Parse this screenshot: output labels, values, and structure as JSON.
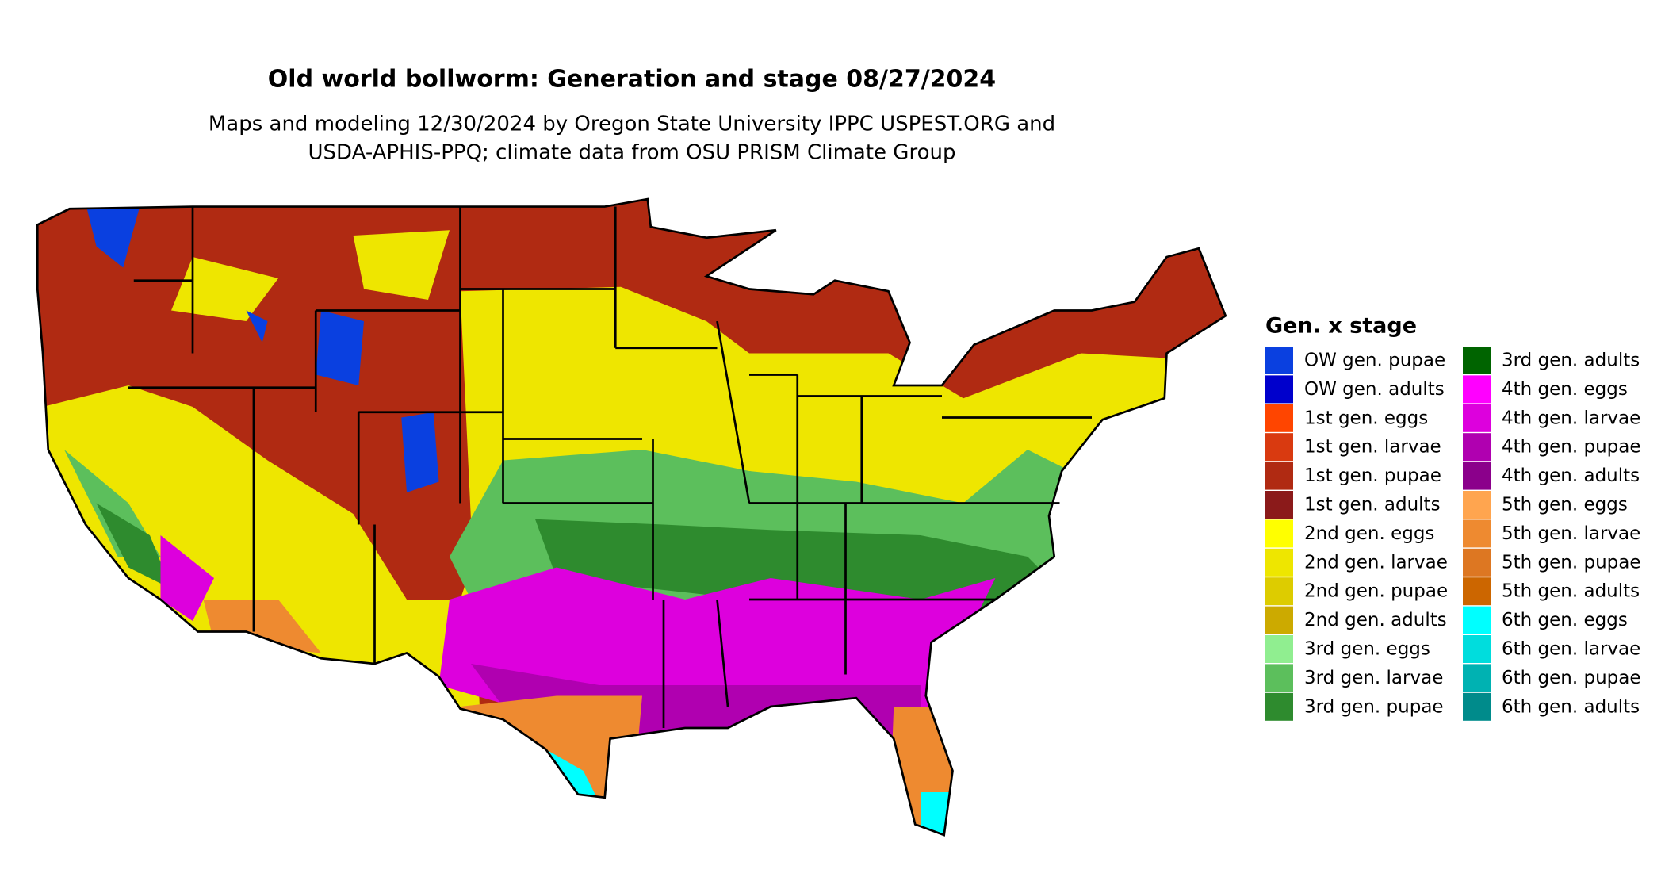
{
  "header": {
    "title": "Old world bollworm: Generation and stage 08/27/2024",
    "subtitle": [
      "Maps and modeling 12/30/2024 by Oregon State University IPPC USPEST.ORG and",
      "USDA-APHIS-PPQ; climate data from OSU PRISM Climate Group"
    ]
  },
  "legend": {
    "title": "Gen. x stage",
    "items": [
      {
        "label": "OW gen. pupae",
        "color": "#0a40e0"
      },
      {
        "label": "OW gen. adults",
        "color": "#0000cc"
      },
      {
        "label": "1st gen. eggs",
        "color": "#ff4500"
      },
      {
        "label": "1st gen. larvae",
        "color": "#d93a10"
      },
      {
        "label": "1st gen. pupae",
        "color": "#b02a12"
      },
      {
        "label": "1st gen. adults",
        "color": "#8b1a1a"
      },
      {
        "label": "2nd gen. eggs",
        "color": "#ffff00"
      },
      {
        "label": "2nd gen. larvae",
        "color": "#eee600"
      },
      {
        "label": "2nd gen. pupae",
        "color": "#ddcc00"
      },
      {
        "label": "2nd gen. adults",
        "color": "#ccaa00"
      },
      {
        "label": "3rd gen. eggs",
        "color": "#90ee90"
      },
      {
        "label": "3rd gen. larvae",
        "color": "#5cbf5c"
      },
      {
        "label": "3rd gen. pupae",
        "color": "#2e8b2e"
      },
      {
        "label": "3rd gen. adults",
        "color": "#006400"
      },
      {
        "label": "4th gen. eggs",
        "color": "#ff00ff"
      },
      {
        "label": "4th gen. larvae",
        "color": "#dd00dd"
      },
      {
        "label": "4th gen. pupae",
        "color": "#b000b0"
      },
      {
        "label": "4th gen. adults",
        "color": "#8b008b"
      },
      {
        "label": "5th gen. eggs",
        "color": "#ffa54f"
      },
      {
        "label": "5th gen. larvae",
        "color": "#ee8a30"
      },
      {
        "label": "5th gen. pupae",
        "color": "#dd7722"
      },
      {
        "label": "5th gen. adults",
        "color": "#cc6600"
      },
      {
        "label": "6th gen. eggs",
        "color": "#00ffff"
      },
      {
        "label": "6th gen. larvae",
        "color": "#00dddd"
      },
      {
        "label": "6th gen. pupae",
        "color": "#00b2b2"
      },
      {
        "label": "6th gen. adults",
        "color": "#008b8b"
      }
    ]
  }
}
